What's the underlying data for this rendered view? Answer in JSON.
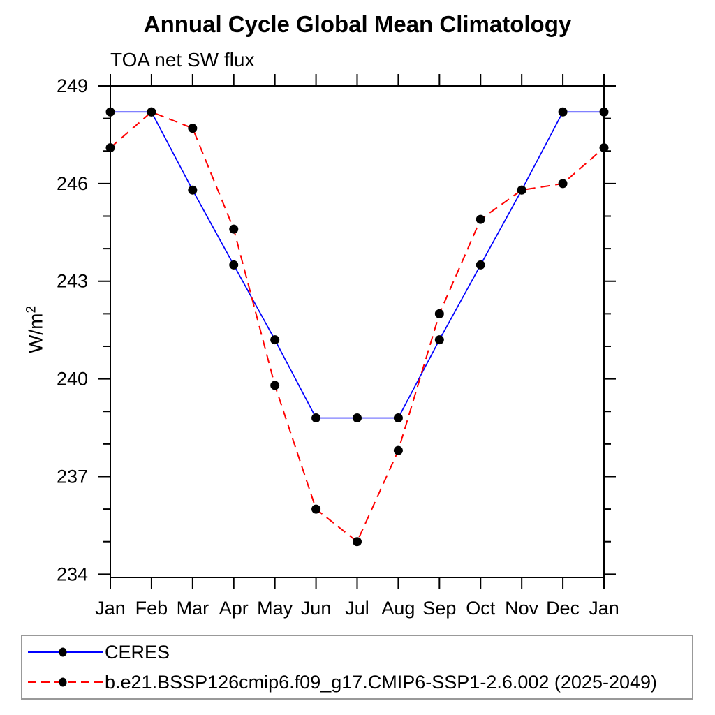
{
  "chart_data": {
    "type": "line",
    "title": "Annual Cycle Global Mean Climatology",
    "subtitle": "TOA net SW flux",
    "xlabel": "",
    "ylabel": {
      "base": "W/m",
      "sup": "2"
    },
    "x_categories": [
      "Jan",
      "Feb",
      "Mar",
      "Apr",
      "May",
      "Jun",
      "Jul",
      "Aug",
      "Sep",
      "Oct",
      "Nov",
      "Dec",
      "Jan"
    ],
    "y_ticks_major": [
      249,
      246,
      243,
      240,
      237,
      234
    ],
    "y_minor_step": 1,
    "ylim": [
      233.9,
      249.0
    ],
    "grid": false,
    "axis_color": "#000000",
    "series": [
      {
        "name": "CERES",
        "color": "#0000ff",
        "style": "solid",
        "marker": "circle",
        "marker_color": "#000000",
        "values": [
          248.2,
          248.2,
          245.8,
          243.5,
          241.2,
          238.8,
          238.8,
          238.8,
          241.2,
          243.5,
          245.8,
          248.2,
          248.2
        ]
      },
      {
        "name": "b.e21.BSSP126cmip6.f09_g17.CMIP6-SSP1-2.6.002 (2025-2049)",
        "color": "#ff0000",
        "style": "dashed",
        "marker": "circle",
        "marker_color": "#000000",
        "values": [
          247.1,
          248.2,
          247.7,
          244.6,
          239.8,
          236.0,
          235.0,
          237.8,
          242.0,
          244.9,
          245.8,
          246.0,
          247.1
        ]
      }
    ],
    "legend": {
      "position": "bottom-left",
      "border_color": "#999999"
    }
  }
}
